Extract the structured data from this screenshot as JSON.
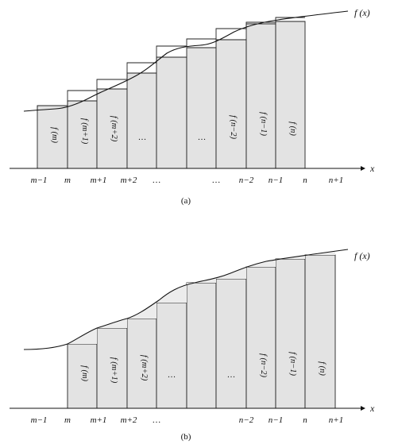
{
  "fx_label": "f (x)",
  "x_axis_label": "x",
  "panel_a": {
    "caption": "(a)",
    "tick_labels": [
      "m−1",
      "m",
      "m+1",
      "m+2",
      "…",
      "…",
      "n−2",
      "n−1",
      "n",
      "n+1"
    ],
    "bar_labels": [
      "f (m)",
      "f (m+1)",
      "f (m+2)",
      "…",
      "…",
      "f (n−2)",
      "f (n−1)",
      "f (n)"
    ]
  },
  "panel_b": {
    "caption": "(b)",
    "tick_labels": [
      "m−1",
      "m",
      "m+1",
      "m+2",
      "…",
      "n−2",
      "n−1",
      "n",
      "n+1"
    ],
    "bar_labels": [
      "f (m)",
      "f (m+1)",
      "f (m+2)",
      "…",
      "…",
      "f (n−2)",
      "f (n−1)",
      "f (n)"
    ]
  }
}
